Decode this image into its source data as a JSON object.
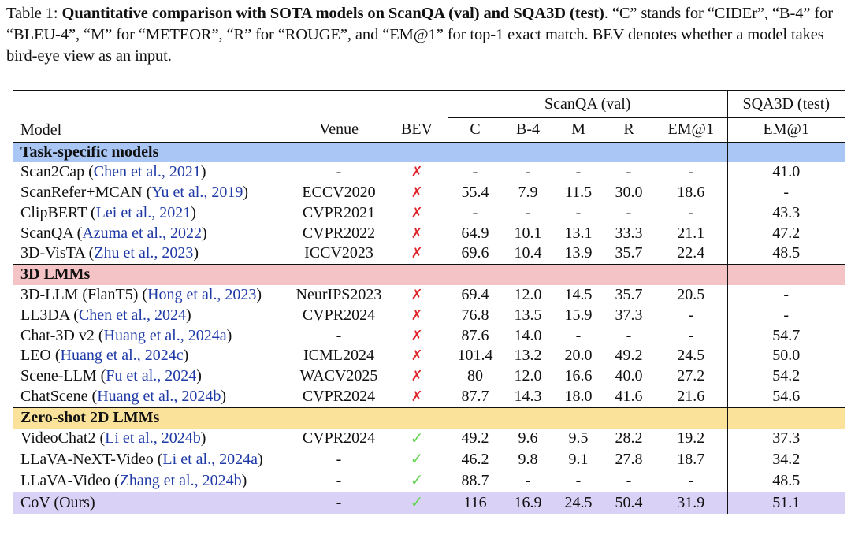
{
  "caption": {
    "label": "Table 1: ",
    "bold": "Quantitative comparison with SOTA models on ScanQA (val) and SQA3D (test)",
    "rest": ". “C” stands for “CIDEr”, “B-4” for “BLEU-4”, “M” for “METEOR”, “R” for “ROUGE”, and “EM@1” for top-1 exact match. BEV denotes whether a model takes bird-eye view as an input."
  },
  "header": {
    "group_scanqa": "ScanQA (val)",
    "group_sqa3d": "SQA3D (test)",
    "model": "Model",
    "venue": "Venue",
    "bev": "BEV",
    "c": "C",
    "b4": "B-4",
    "m": "M",
    "r": "R",
    "em1": "EM@1",
    "sqa_em1": "EM@1"
  },
  "colors": {
    "task_specific": "#a9c6f4",
    "lmm3d": "#f3c3c6",
    "zero_shot": "#fae29a",
    "ours": "#d9d2f6",
    "cross": "#e0242b",
    "check": "#5ed44c",
    "citation": "#1f3aa6"
  },
  "sections": [
    {
      "title": "Task-specific models",
      "rows": [
        {
          "name": "Scan2Cap (",
          "cite": "Chen et al., 2021",
          "close": ")",
          "venue": "-",
          "bev": "✗",
          "c": "-",
          "b4": "-",
          "m": "-",
          "r": "-",
          "em1": "-",
          "sqa": "41.0"
        },
        {
          "name": "ScanRefer+MCAN (",
          "cite": "Yu et al., 2019",
          "close": ")",
          "venue": "ECCV2020",
          "bev": "✗",
          "c": "55.4",
          "b4": "7.9",
          "m": "11.5",
          "r": "30.0",
          "em1": "18.6",
          "sqa": "-"
        },
        {
          "name": "ClipBERT (",
          "cite": "Lei et al., 2021",
          "close": ")",
          "venue": "CVPR2021",
          "bev": "✗",
          "c": "-",
          "b4": "-",
          "m": "-",
          "r": "-",
          "em1": "-",
          "sqa": "43.3"
        },
        {
          "name": "ScanQA (",
          "cite": "Azuma et al., 2022",
          "close": ")",
          "venue": "CVPR2022",
          "bev": "✗",
          "c": "64.9",
          "b4": "10.1",
          "m": "13.1",
          "r": "33.3",
          "em1": "21.1",
          "sqa": "47.2"
        },
        {
          "name": "3D-VisTA (",
          "cite": "Zhu et al., 2023",
          "close": ")",
          "venue": "ICCV2023",
          "bev": "✗",
          "c": "69.6",
          "b4": "10.4",
          "m": "13.9",
          "r": "35.7",
          "em1": "22.4",
          "sqa": "48.5"
        }
      ]
    },
    {
      "title": "3D LMMs",
      "rows": [
        {
          "name": "3D-LLM (FlanT5) (",
          "cite": "Hong et al., 2023",
          "close": ")",
          "venue": "NeurIPS2023",
          "bev": "✗",
          "c": "69.4",
          "b4": "12.0",
          "m": "14.5",
          "r": "35.7",
          "em1": "20.5",
          "sqa": "-"
        },
        {
          "name": "LL3DA (",
          "cite": "Chen et al., 2024",
          "close": ")",
          "venue": "CVPR2024",
          "bev": "✗",
          "c": "76.8",
          "b4": "13.5",
          "m": "15.9",
          "r": "37.3",
          "em1": "-",
          "sqa": "-"
        },
        {
          "name": "Chat-3D v2 (",
          "cite": "Huang et al., 2024a",
          "close": ")",
          "venue": "-",
          "bev": "✗",
          "c": "87.6",
          "b4": "14.0",
          "m": "-",
          "r": "-",
          "em1": "-",
          "sqa": "54.7"
        },
        {
          "name": "LEO (",
          "cite": "Huang et al., 2024c",
          "close": ")",
          "venue": "ICML2024",
          "bev": "✗",
          "c": "101.4",
          "b4": "13.2",
          "m": "20.0",
          "r": "49.2",
          "em1": "24.5",
          "sqa": "50.0"
        },
        {
          "name": "Scene-LLM  (",
          "cite": "Fu et al., 2024",
          "close": ")",
          "venue": "WACV2025",
          "bev": "✗",
          "c": "80",
          "b4": "12.0",
          "m": "16.6",
          "r": "40.0",
          "em1": "27.2",
          "sqa": "54.2"
        },
        {
          "name": "ChatScene  (",
          "cite": "Huang et al., 2024b",
          "close": ")",
          "venue": "CVPR2024",
          "bev": "✗",
          "c": "87.7",
          "b4": "14.3",
          "m": "18.0",
          "r": "41.6",
          "em1": "21.6",
          "sqa": "54.6"
        }
      ]
    },
    {
      "title": "Zero-shot 2D LMMs",
      "rows": [
        {
          "name": "VideoChat2 (",
          "cite": "Li et al., 2024b",
          "close": ")",
          "venue": "CVPR2024",
          "bev": "✓",
          "c": "49.2",
          "b4": "9.6",
          "m": "9.5",
          "r": "28.2",
          "em1": "19.2",
          "sqa": "37.3"
        },
        {
          "name": "LLaVA-NeXT-Video (",
          "cite": "Li et al., 2024a",
          "close": ")",
          "venue": "-",
          "bev": "✓",
          "c": "46.2",
          "b4": "9.8",
          "m": "9.1",
          "r": "27.8",
          "em1": "18.7",
          "sqa": "34.2"
        },
        {
          "name": "LLaVA-Video (",
          "cite": "Zhang et al., 2024b",
          "close": ")",
          "venue": "-",
          "bev": "✓",
          "c": "88.7",
          "b4": "-",
          "m": "-",
          "r": "-",
          "em1": "-",
          "sqa": "48.5"
        }
      ]
    }
  ],
  "ours": {
    "name": "CoV (Ours)",
    "venue": "-",
    "bev": "✓",
    "c": "116",
    "b4": "16.9",
    "m": "24.5",
    "r": "50.4",
    "em1": "31.9",
    "sqa": "51.1"
  }
}
